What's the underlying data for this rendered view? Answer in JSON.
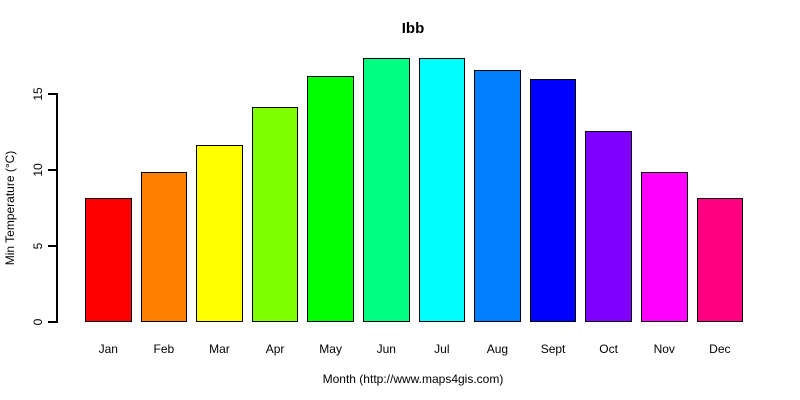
{
  "chart_data": {
    "type": "bar",
    "title": "Ibb",
    "xlabel": "Month (http://www.maps4gis.com)",
    "ylabel": "Min Temperature (°C)",
    "categories": [
      "Jan",
      "Feb",
      "Mar",
      "Apr",
      "May",
      "Jun",
      "Jul",
      "Aug",
      "Sept",
      "Oct",
      "Nov",
      "Dec"
    ],
    "values": [
      8.2,
      9.9,
      11.7,
      14.2,
      16.2,
      17.4,
      17.4,
      16.6,
      16.0,
      12.6,
      9.9,
      8.2
    ],
    "bar_colors": [
      "#FF0000",
      "#FF8000",
      "#FFFF00",
      "#80FF00",
      "#00FF00",
      "#00FF80",
      "#00FFFF",
      "#0080FF",
      "#0000FF",
      "#8000FF",
      "#FF00FF",
      "#FF0080"
    ],
    "bar_border_color": "#000000",
    "axis_color": "#000000",
    "background_color": "#FFFFFF",
    "yticks": [
      0,
      5,
      10,
      15
    ],
    "ylim": [
      0,
      18
    ],
    "grid": false,
    "legend": false
  }
}
